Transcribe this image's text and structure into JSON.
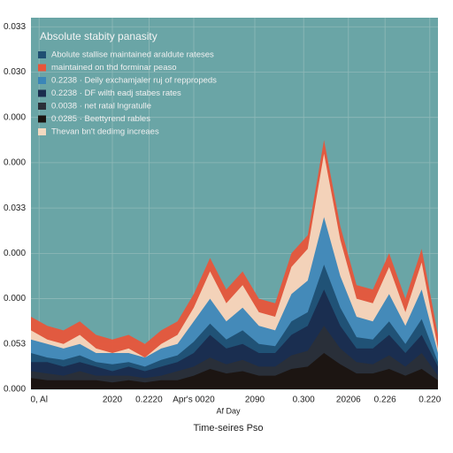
{
  "chart_data": {
    "type": "area",
    "title": "Absolute stabity panasity",
    "xlabel": "Af Day",
    "xlabel2": "Time-seires Pso",
    "x": [
      0,
      4,
      8,
      12,
      16,
      20,
      24,
      28,
      32,
      36,
      40,
      44,
      48,
      52,
      56,
      60,
      64,
      68,
      72,
      76,
      80,
      84,
      88,
      92,
      96,
      100
    ],
    "xlim": [
      0,
      100
    ],
    "xticks": [
      {
        "value": 2,
        "label": "0,  Al"
      },
      {
        "value": 20,
        "label": "2020"
      },
      {
        "value": 29,
        "label": "0.2220"
      },
      {
        "value": 40,
        "label": "Apr's  0020"
      },
      {
        "value": 55,
        "label": "2090"
      },
      {
        "value": 67,
        "label": "0.300"
      },
      {
        "value": 78,
        "label": "20206"
      },
      {
        "value": 87,
        "label": "0.226"
      },
      {
        "value": 98,
        "label": "0.220"
      }
    ],
    "ylim": [
      0,
      8.2
    ],
    "yticks": [
      {
        "value": 0,
        "label": "0.000"
      },
      {
        "value": 1,
        "label": "0.053"
      },
      {
        "value": 2,
        "label": "0.000"
      },
      {
        "value": 3,
        "label": "0.000"
      },
      {
        "value": 4,
        "label": "0.033"
      },
      {
        "value": 5,
        "label": "0.000"
      },
      {
        "value": 6,
        "label": "0.000"
      },
      {
        "value": 7,
        "label": "0.030"
      },
      {
        "value": 8,
        "label": "0.033"
      }
    ],
    "grid": true,
    "series": [
      {
        "name": "maintained on thd forminar peaso",
        "color": "#e8553a",
        "values": [
          1.6,
          1.4,
          1.3,
          1.5,
          1.2,
          1.1,
          1.2,
          1.0,
          1.3,
          1.5,
          2.1,
          2.9,
          2.2,
          2.6,
          2.0,
          1.9,
          3.0,
          3.4,
          5.5,
          3.6,
          2.3,
          2.2,
          3.0,
          2.0,
          3.1,
          1.2
        ]
      },
      {
        "name": "Thevan bn't dedimg increaes",
        "color": "#f3d9c0",
        "values": [
          1.3,
          1.1,
          1.0,
          1.2,
          0.9,
          0.8,
          0.9,
          0.7,
          1.0,
          1.2,
          1.8,
          2.6,
          1.9,
          2.3,
          1.7,
          1.6,
          2.7,
          3.1,
          5.2,
          3.3,
          2.0,
          1.9,
          2.7,
          1.7,
          2.8,
          0.9
        ]
      },
      {
        "name": "0.2238  ·  Deily exchamjaler ruj of reppropeds",
        "color": "#3a86b8",
        "values": [
          1.1,
          1.0,
          0.9,
          1.0,
          0.8,
          0.8,
          0.8,
          0.7,
          0.9,
          1.0,
          1.5,
          2.0,
          1.5,
          1.8,
          1.4,
          1.3,
          2.1,
          2.4,
          3.8,
          2.5,
          1.6,
          1.5,
          2.1,
          1.4,
          2.2,
          0.8
        ]
      },
      {
        "name": "Abolute stallise maintained araldute rateses",
        "color": "#1f4f72",
        "values": [
          0.8,
          0.7,
          0.65,
          0.75,
          0.6,
          0.55,
          0.6,
          0.5,
          0.65,
          0.75,
          1.05,
          1.45,
          1.1,
          1.3,
          1.0,
          0.95,
          1.5,
          1.7,
          2.75,
          1.8,
          1.15,
          1.1,
          1.5,
          1.0,
          1.55,
          0.6
        ]
      },
      {
        "name": "0.2238  ·  DF wilth eadj stabes rates",
        "color": "#1a2c4e",
        "values": [
          0.6,
          0.6,
          0.5,
          0.6,
          0.5,
          0.4,
          0.5,
          0.4,
          0.5,
          0.6,
          0.8,
          1.2,
          0.9,
          1.0,
          0.8,
          0.8,
          1.2,
          1.4,
          2.2,
          1.4,
          0.9,
          0.9,
          1.2,
          0.8,
          1.2,
          0.5
        ]
      },
      {
        "name": "0.0038  ·  net ratal lngratulle",
        "color": "#2a2f38",
        "values": [
          0.4,
          0.35,
          0.3,
          0.4,
          0.3,
          0.3,
          0.3,
          0.25,
          0.3,
          0.4,
          0.5,
          0.7,
          0.55,
          0.65,
          0.5,
          0.5,
          0.75,
          0.85,
          1.4,
          0.9,
          0.6,
          0.55,
          0.75,
          0.5,
          0.8,
          0.3
        ]
      },
      {
        "name": "0.0285  ·  Beettyrend rables",
        "color": "#1b1410",
        "values": [
          0.25,
          0.2,
          0.2,
          0.2,
          0.2,
          0.15,
          0.2,
          0.15,
          0.2,
          0.2,
          0.3,
          0.45,
          0.35,
          0.4,
          0.3,
          0.3,
          0.45,
          0.5,
          0.8,
          0.55,
          0.35,
          0.35,
          0.45,
          0.3,
          0.45,
          0.2
        ]
      }
    ]
  }
}
